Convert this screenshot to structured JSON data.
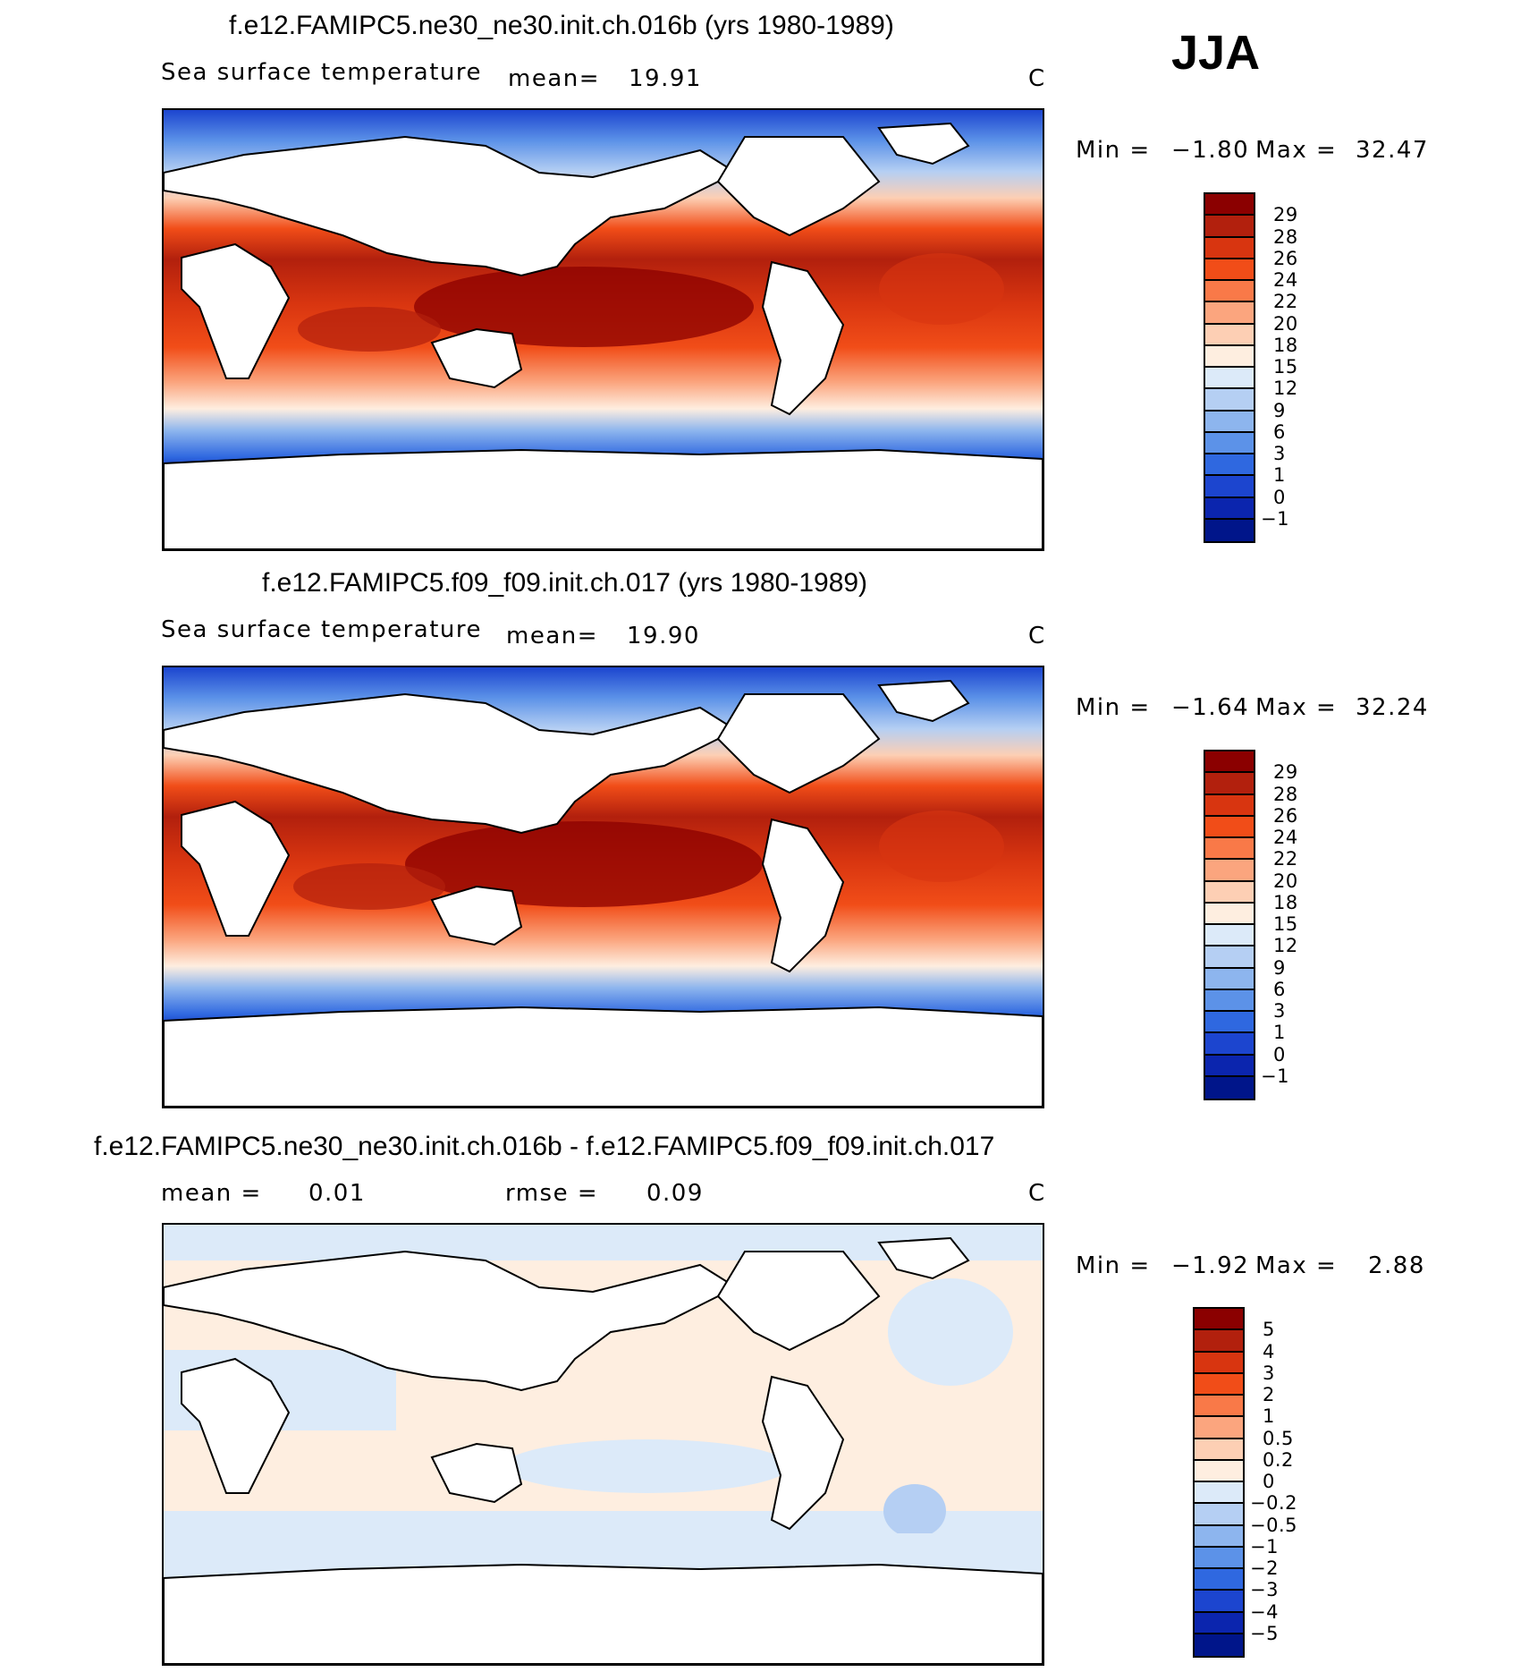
{
  "season": "JJA",
  "panels": [
    {
      "title": "f.e12.FAMIPC5.ne30_ne30.init.ch.016b (yrs 1980-1989)",
      "variable": "Sea surface temperature",
      "mean_label": "mean=",
      "mean_value": "19.91",
      "units": "C",
      "min_label": "Min =",
      "min_value": "−1.80",
      "max_label": "Max =",
      "max_value": "32.47",
      "colorbar_labels": [
        "29",
        "28",
        "26",
        "24",
        "22",
        "20",
        "18",
        "15",
        "12",
        "9",
        "6",
        "3",
        "1",
        "0",
        "−1"
      ],
      "colors": [
        "#8b0000",
        "#b2200d",
        "#d83510",
        "#f14d18",
        "#f97948",
        "#fba57e",
        "#fdcfb4",
        "#feeee0",
        "#dceaf9",
        "#b5cff3",
        "#8db5ee",
        "#5c92e8",
        "#2f68e0",
        "#1c45cf",
        "#0b25ae",
        "#00158a"
      ]
    },
    {
      "title": "f.e12.FAMIPC5.f09_f09.init.ch.017 (yrs 1980-1989)",
      "variable": "Sea surface temperature",
      "mean_label": "mean=",
      "mean_value": "19.90",
      "units": "C",
      "min_label": "Min =",
      "min_value": "−1.64",
      "max_label": "Max =",
      "max_value": "32.24",
      "colorbar_labels": [
        "29",
        "28",
        "26",
        "24",
        "22",
        "20",
        "18",
        "15",
        "12",
        "9",
        "6",
        "3",
        "1",
        "0",
        "−1"
      ],
      "colors": [
        "#8b0000",
        "#b2200d",
        "#d83510",
        "#f14d18",
        "#f97948",
        "#fba57e",
        "#fdcfb4",
        "#feeee0",
        "#dceaf9",
        "#b5cff3",
        "#8db5ee",
        "#5c92e8",
        "#2f68e0",
        "#1c45cf",
        "#0b25ae",
        "#00158a"
      ]
    },
    {
      "title": "f.e12.FAMIPC5.ne30_ne30.init.ch.016b - f.e12.FAMIPC5.f09_f09.init.ch.017",
      "mean_label": "mean =",
      "mean_value": "0.01",
      "rmse_label": "rmse =",
      "rmse_value": "0.09",
      "units": "C",
      "min_label": "Min =",
      "min_value": "−1.92",
      "max_label": "Max =",
      "max_value": "2.88",
      "colorbar_labels": [
        "5",
        "4",
        "3",
        "2",
        "1",
        "0.5",
        "0.2",
        "0",
        "−0.2",
        "−0.5",
        "−1",
        "−2",
        "−3",
        "−4",
        "−5"
      ],
      "colors": [
        "#8b0000",
        "#b2200d",
        "#d83510",
        "#f14d18",
        "#f97948",
        "#fba57e",
        "#fdcfb4",
        "#feeee0",
        "#dceaf9",
        "#b5cff3",
        "#8db5ee",
        "#5c92e8",
        "#2f68e0",
        "#1c45cf",
        "#0b25ae",
        "#00158a"
      ]
    }
  ]
}
